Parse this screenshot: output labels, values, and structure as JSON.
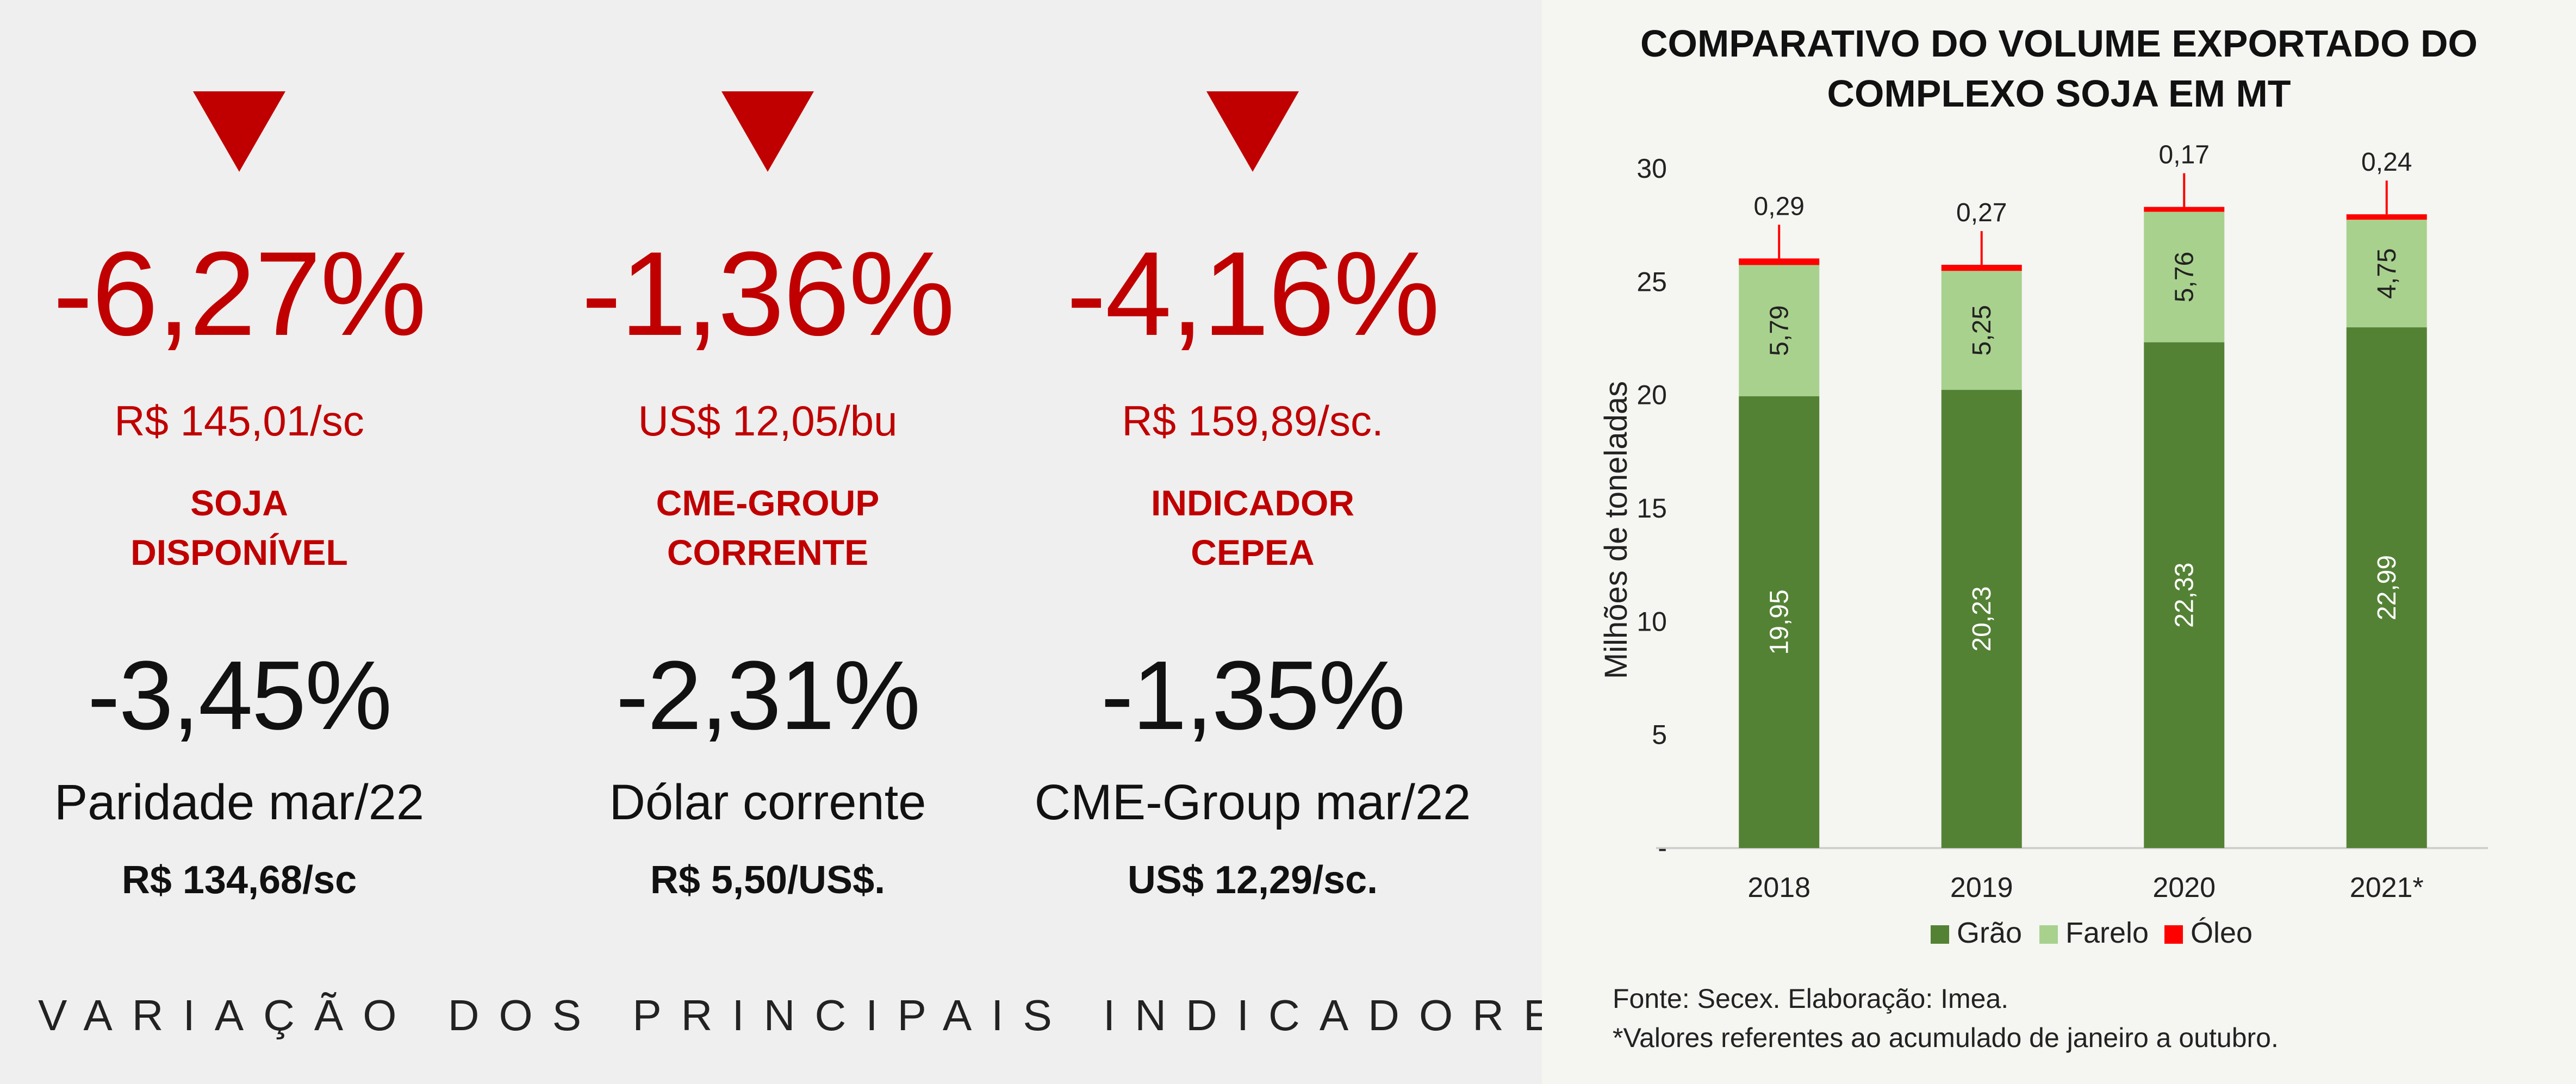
{
  "indicators_top": [
    {
      "pct": "-6,27%",
      "price": "R$ 145,01/sc",
      "name_line1": "SOJA",
      "name_line2": "DISPONÍVEL"
    },
    {
      "pct": "-1,36%",
      "price": "US$ 12,05/bu",
      "name_line1": "CME-GROUP",
      "name_line2": "CORRENTE"
    },
    {
      "pct": "-4,16%",
      "price": "R$ 159,89/sc.",
      "name_line1": "INDICADOR",
      "name_line2": "CEPEA"
    }
  ],
  "indicators_bottom": [
    {
      "pct": "-3,45%",
      "name": "Paridade mar/22",
      "price": "R$ 134,68/sc"
    },
    {
      "pct": "-2,31%",
      "name": "Dólar corrente",
      "price": "R$ 5,50/US$."
    },
    {
      "pct": "-1,35%",
      "name": "CME-Group mar/22",
      "price": "US$ 12,29/sc."
    }
  ],
  "footer_title": "VARIAÇÃO DOS PRINCIPAIS INDICADORES",
  "colors": {
    "down_red": "#c00000",
    "grao": "#548235",
    "farelo": "#a9d18e",
    "oleo": "#ff0000"
  },
  "chart_data": {
    "type": "bar",
    "stacked": true,
    "title_line1": "COMPARATIVO DO VOLUME EXPORTADO DO",
    "title_line2": "COMPLEXO SOJA EM MT",
    "ylabel": "Milhões de toneladas",
    "ylim": [
      0,
      30
    ],
    "yticks": [
      "-",
      "5",
      "10",
      "15",
      "20",
      "25",
      "30"
    ],
    "categories": [
      "2018",
      "2019",
      "2020",
      "2021*"
    ],
    "series": [
      {
        "name": "Grão",
        "values": [
          19.95,
          20.23,
          22.33,
          22.99
        ],
        "labels": [
          "19,95",
          "20,23",
          "22,33",
          "22,99"
        ]
      },
      {
        "name": "Farelo",
        "values": [
          5.79,
          5.25,
          5.76,
          4.75
        ],
        "labels": [
          "5,79",
          "5,25",
          "5,76",
          "4,75"
        ]
      },
      {
        "name": "Óleo",
        "values": [
          0.29,
          0.27,
          0.17,
          0.24
        ],
        "labels": [
          "0,29",
          "0,27",
          "0,17",
          "0,24"
        ]
      }
    ],
    "legend_position": "bottom",
    "grid": false
  },
  "notes": {
    "source": "Fonte: Secex. Elaboração: Imea.",
    "footnote": "*Valores referentes ao acumulado de janeiro a outubro."
  }
}
